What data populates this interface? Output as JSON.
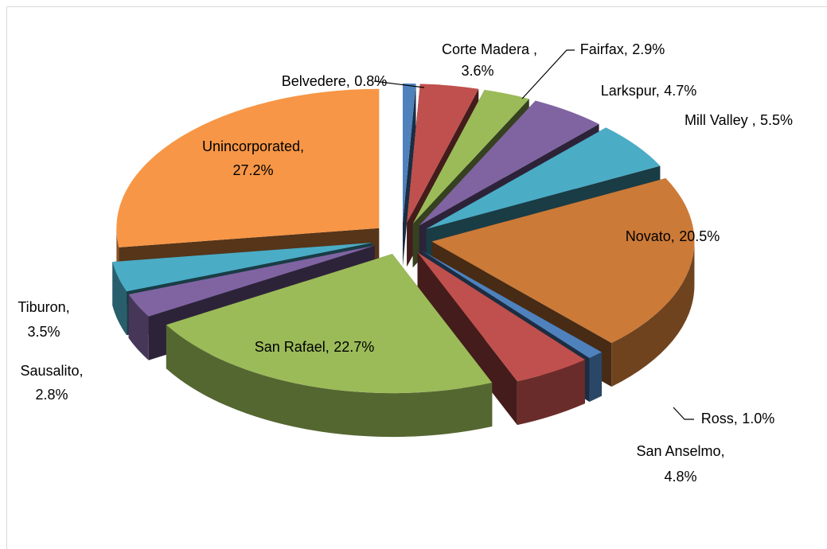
{
  "chart_data": {
    "type": "pie",
    "style": "3d-exploded",
    "categories": [
      "Belvedere,",
      "Corte Madera ,",
      "Fairfax,",
      "Larkspur,",
      "Mill Valley ,",
      "Novato,",
      "Ross,",
      "San Anselmo,",
      "San Rafael,",
      "Sausalito,",
      "Tiburon,",
      "Unincorporated,"
    ],
    "values": [
      0.8,
      3.6,
      2.9,
      4.7,
      5.5,
      20.5,
      1.0,
      4.8,
      22.7,
      2.8,
      3.5,
      27.2
    ],
    "value_labels": [
      "0.8%",
      "3.6%",
      "2.9%",
      "4.7%",
      "5.5%",
      "20.5%",
      "1.0%",
      "4.8%",
      "22.7%",
      "2.8%",
      "3.5%",
      "27.2%"
    ],
    "colors": [
      "#4f81bd",
      "#c0504d",
      "#9bbb59",
      "#8064a2",
      "#4bacc6",
      "#cc7a38",
      "#4f81bd",
      "#c0504d",
      "#9bbb59",
      "#8064a2",
      "#4bacc6",
      "#f79646"
    ]
  }
}
